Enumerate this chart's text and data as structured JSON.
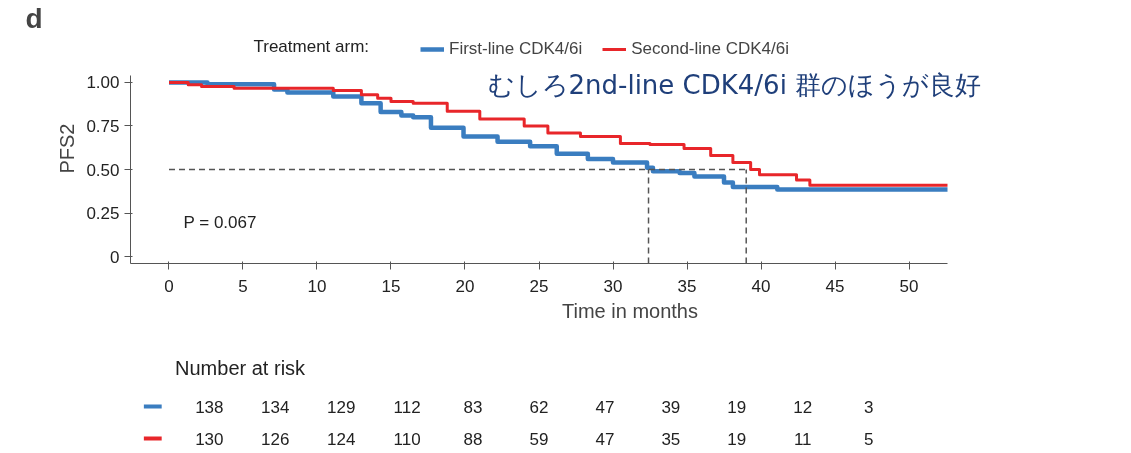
{
  "chart_data": {
    "type": "step",
    "xlabel": "Time in months",
    "ylabel": "PFS2",
    "legend_title": "Treatment arm:",
    "legend": "top",
    "xlim": [
      -2.6,
      52.6
    ],
    "ylim": [
      -0.04,
      1.04
    ],
    "xticks": [
      0,
      5,
      10,
      15,
      20,
      25,
      30,
      35,
      40,
      45,
      50
    ],
    "yticks": [
      {
        "value": 0,
        "label": "0"
      },
      0.25,
      {
        "value": 0.5,
        "label": "0.50"
      },
      0.75,
      {
        "value": 1,
        "label": "1.00"
      }
    ],
    "grid": false,
    "line_style": "solid",
    "ref_lines": [
      {
        "axis": "y",
        "value": 0.5,
        "color": "#555555",
        "line_style": "dashed"
      },
      {
        "axis": "x",
        "value": 32.4,
        "color": "#555555",
        "line_style": "dashed"
      },
      {
        "axis": "x",
        "value": 39,
        "color": "#555555",
        "line_style": "dashed"
      }
    ],
    "annotations": [
      "d",
      "むしろ2nd-line CDK4/6i 群のほうが良好",
      "P = 0.067",
      "Number at risk",
      "138",
      "134",
      "129",
      "112",
      "83",
      "62",
      "47",
      "39",
      "19",
      "12",
      "3",
      "130",
      "126",
      "124",
      "110",
      "88",
      "59",
      "47",
      "35",
      "19",
      "11",
      "5"
    ],
    "series": [
      {
        "name": "First-line CDK4/6i",
        "color": "#3a7dc0",
        "x": [
          0,
          2.6,
          7.1,
          8,
          11.1,
          13,
          14.3,
          15.7,
          16.5,
          17.7,
          19.9,
          22.2,
          24.4,
          26.2,
          28.3,
          30,
          32.3,
          32.7,
          34.5,
          35.5,
          37.5,
          38.1,
          41.1,
          52.6
        ],
        "values": [
          1,
          0.99,
          0.96,
          0.943,
          0.92,
          0.88,
          0.83,
          0.81,
          0.8,
          0.74,
          0.69,
          0.66,
          0.634,
          0.59,
          0.56,
          0.54,
          0.51,
          0.49,
          0.48,
          0.46,
          0.425,
          0.4,
          0.385,
          0.385
        ]
      },
      {
        "name": "Second-line CDK4/6i",
        "color": "#e8262a",
        "x": [
          0,
          1.3,
          2.2,
          4.4,
          11.1,
          13,
          14.1,
          15,
          16.5,
          18.8,
          21,
          24,
          25.6,
          27.8,
          30.5,
          32.5,
          34.8,
          36.6,
          38.1,
          39.3,
          39.9,
          42.4,
          43.3,
          52.6
        ],
        "values": [
          1,
          0.987,
          0.977,
          0.967,
          0.954,
          0.93,
          0.91,
          0.89,
          0.88,
          0.834,
          0.79,
          0.75,
          0.71,
          0.69,
          0.65,
          0.644,
          0.62,
          0.58,
          0.54,
          0.5,
          0.47,
          0.44,
          0.41,
          0.41
        ]
      }
    ]
  }
}
